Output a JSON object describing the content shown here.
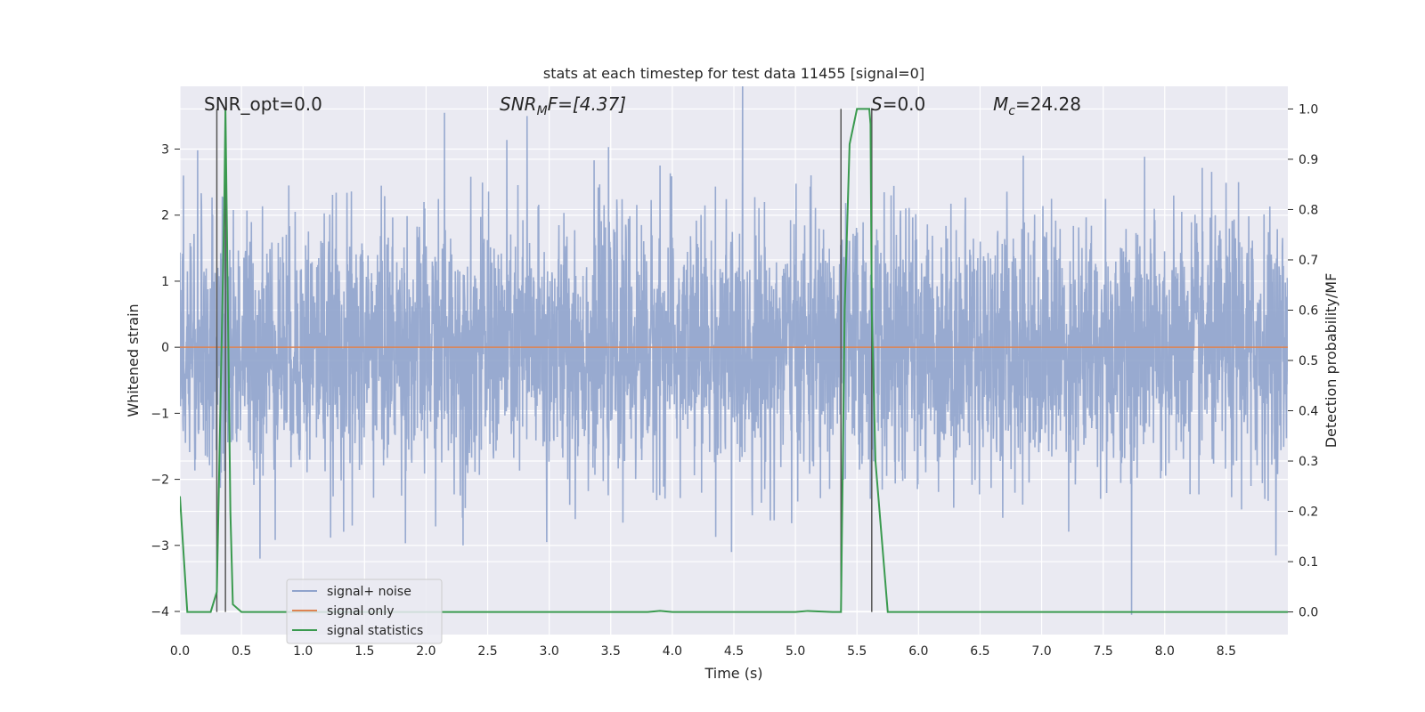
{
  "chart_data": {
    "type": "line",
    "title": "stats at each timestep for test data 11455 [signal=0]",
    "xlabel": "Time (s)",
    "ylabel_left": "Whitened strain",
    "ylabel_right": "Detection probability/MF",
    "xlim": [
      0.0,
      9.0
    ],
    "ylim_left": [
      -4.35,
      3.95
    ],
    "ylim_right": [
      -0.045,
      1.045
    ],
    "x_ticks": [
      "0.0",
      "0.5",
      "1.0",
      "1.5",
      "2.0",
      "2.5",
      "3.0",
      "3.5",
      "4.0",
      "4.5",
      "5.0",
      "5.5",
      "6.0",
      "6.5",
      "7.0",
      "7.5",
      "8.0",
      "8.5"
    ],
    "y_left_ticks": [
      "3",
      "2",
      "1",
      "0",
      "−1",
      "−2",
      "−3",
      "−4"
    ],
    "y_right_ticks": [
      "1.0",
      "0.9",
      "0.8",
      "0.7",
      "0.6",
      "0.5",
      "0.4",
      "0.3",
      "0.2",
      "0.1",
      "0.0"
    ],
    "grid": true,
    "legend_position": "lower-left",
    "annotations": {
      "snr_opt": "SNR_opt=0.0",
      "snr_mf_main": "SNR",
      "snr_mf_sub": "M",
      "snr_mf_rest": "F=[4.37]",
      "s_main": "S",
      "s_rest": "=0.0",
      "mc_main": "M",
      "mc_sub": "c",
      "mc_rest": "=24.28"
    },
    "series": [
      {
        "name": "signal+ noise",
        "color": "#8fa3cc",
        "description_values": "whitened noise, approx. Gaussian, std ~1.0",
        "envelope_high_peaks": [
          [
            0.03,
            2.6
          ],
          [
            2.15,
            3.55
          ],
          [
            2.82,
            3.5
          ],
          [
            3.9,
            2.75
          ],
          [
            6.85,
            2.9
          ],
          [
            8.6,
            2.5
          ]
        ],
        "envelope_low_peaks": [
          [
            0.65,
            -3.2
          ],
          [
            1.4,
            -2.7
          ],
          [
            2.3,
            -3.0
          ],
          [
            2.98,
            -2.95
          ],
          [
            4.48,
            -3.1
          ],
          [
            7.73,
            -4.05
          ],
          [
            8.7,
            -2.1
          ]
        ]
      },
      {
        "name": "signal only",
        "color": "#dd8452",
        "x": [
          0.0,
          9.0
        ],
        "y": [
          0.0,
          0.0
        ]
      },
      {
        "name": "signal statistics",
        "color": "#3a9a4f",
        "axis": "right",
        "x": [
          0.0,
          0.06,
          0.25,
          0.3,
          0.36,
          0.37,
          0.39,
          0.41,
          0.43,
          0.5,
          1.0,
          2.0,
          3.0,
          3.8,
          3.9,
          4.0,
          5.0,
          5.1,
          5.3,
          5.37,
          5.4,
          5.44,
          5.5,
          5.6,
          5.61,
          5.62,
          5.65,
          5.75,
          6.0,
          7.0,
          8.0,
          9.0
        ],
        "y": [
          0.23,
          0.0,
          0.0,
          0.04,
          0.8,
          1.0,
          0.6,
          0.2,
          0.015,
          0.0,
          0.0,
          0.0,
          0.0,
          0.0,
          0.002,
          0.0,
          0.0,
          0.002,
          0.0,
          0.0,
          0.6,
          0.93,
          1.0,
          1.0,
          0.97,
          0.6,
          0.3,
          0.0,
          0.0,
          0.0,
          0.0,
          0.0
        ]
      }
    ],
    "vertical_markers_x": [
      0.3,
      0.37,
      5.37,
      5.62
    ]
  }
}
